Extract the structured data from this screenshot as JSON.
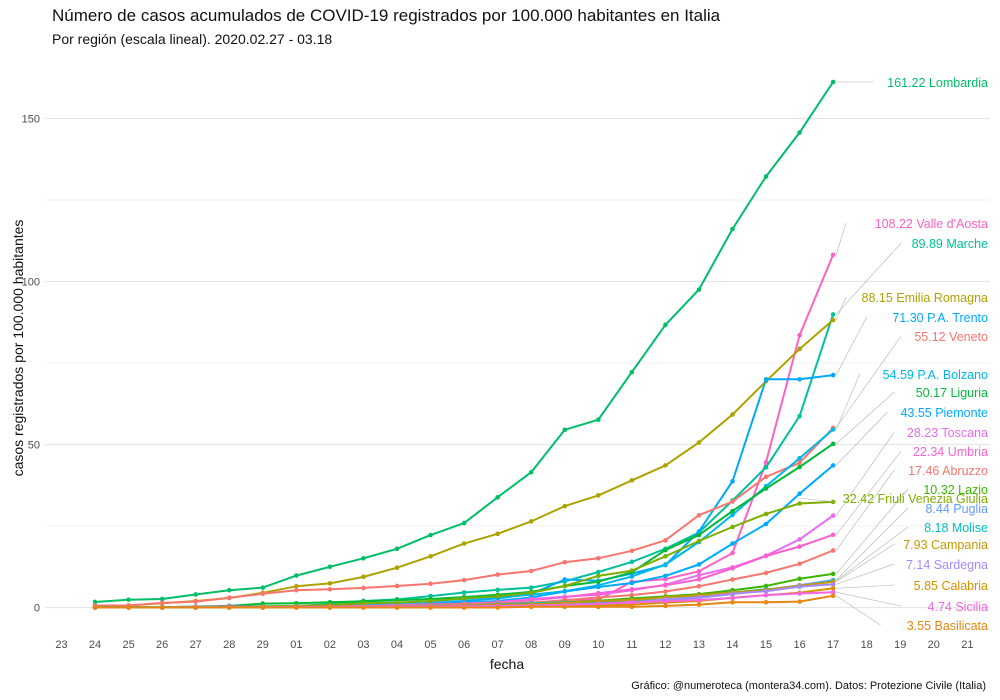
{
  "chart_data": {
    "type": "line",
    "title": "Número de casos acumulados de COVID-19 registrados por 100.000 habitantes en Italia",
    "subtitle": "Por región (escala lineal). 2020.02.27 - 03.18",
    "xlabel": "fecha",
    "ylabel": "casos registrados por 100.000 habitantes",
    "caption": "Gráfico: @numeroteca (montera34.com). Datos: Protezione Civile (Italia)",
    "x_ticks": [
      "23",
      "24",
      "25",
      "26",
      "27",
      "28",
      "29",
      "01",
      "02",
      "03",
      "04",
      "05",
      "06",
      "07",
      "08",
      "09",
      "10",
      "11",
      "12",
      "13",
      "14",
      "15",
      "16",
      "17",
      "18",
      "19",
      "20",
      "21"
    ],
    "y_ticks": [
      0,
      50,
      100,
      150
    ],
    "ylim": [
      -8,
      170
    ],
    "grid": true,
    "series": [
      {
        "name": "Lombardia",
        "color": "#00BE67",
        "label": "161.22 Lombardia",
        "values": [
          1.7,
          2.4,
          2.6,
          4.0,
          5.3,
          6.1,
          9.8,
          12.5,
          15.1,
          18.0,
          22.2,
          25.9,
          33.8,
          41.5,
          54.5,
          57.6,
          72.2,
          86.7,
          97.5,
          116.1,
          132.2,
          145.7,
          161.2
        ]
      },
      {
        "name": "Valle d'Aosta",
        "color": "#FF61C3",
        "label": "108.22 Valle d'Aosta",
        "values": [
          0,
          0,
          0,
          0,
          0,
          0,
          0,
          0,
          0,
          0,
          0,
          0,
          0.8,
          0.8,
          2.4,
          2.4,
          7.9,
          8.7,
          11.1,
          16.7,
          44.5,
          83.5,
          108.2
        ]
      },
      {
        "name": "Marche",
        "color": "#00C19A",
        "label": "89.89 Marche",
        "values": [
          0,
          0,
          0,
          0,
          0.1,
          0.2,
          0.5,
          1.0,
          2.0,
          2.5,
          3.5,
          4.6,
          5.4,
          6.1,
          8.0,
          10.9,
          14.0,
          18.0,
          23.0,
          32.8,
          43.0,
          58.7,
          89.9
        ]
      },
      {
        "name": "Emilia Romagna",
        "color": "#AEA200",
        "label": "88.15 Emilia Romagna",
        "values": [
          0.4,
          0.6,
          1.3,
          2.0,
          2.9,
          4.5,
          6.5,
          7.4,
          9.4,
          12.2,
          15.7,
          19.6,
          22.6,
          26.4,
          31.1,
          34.4,
          39.0,
          43.6,
          50.6,
          59.2,
          69.4,
          79.3,
          88.2
        ]
      },
      {
        "name": "P.A. Trento",
        "color": "#00A9FF",
        "label": "71.30 P.A. Trento",
        "values": [
          0,
          0,
          0,
          0,
          0,
          0,
          0.2,
          0.2,
          0.5,
          0.7,
          1.3,
          1.9,
          2.8,
          4.1,
          8.6,
          8.2,
          10.4,
          13.0,
          23.3,
          38.7,
          70.0,
          70.0,
          71.3
        ]
      },
      {
        "name": "Veneto",
        "color": "#F8766D",
        "label": "55.12 Veneto",
        "values": [
          0.6,
          0.6,
          1.4,
          1.8,
          3.0,
          4.2,
          5.3,
          5.6,
          6.0,
          6.6,
          7.3,
          8.4,
          10.1,
          11.2,
          13.9,
          15.1,
          17.4,
          20.6,
          28.3,
          32.5,
          40.1,
          44.4,
          55.1
        ]
      },
      {
        "name": "P.A. Bolzano",
        "color": "#00B8E7",
        "label": "54.59 P.A. Bolzano",
        "values": [
          0,
          0,
          0,
          0.2,
          0.4,
          0.4,
          0.4,
          0.9,
          1.1,
          1.3,
          1.9,
          2.6,
          3.2,
          3.9,
          5.0,
          6.8,
          9.5,
          13.2,
          20.1,
          28.4,
          37.2,
          45.8,
          54.6
        ]
      },
      {
        "name": "Liguria",
        "color": "#00BA38",
        "label": "50.17 Liguria",
        "values": [
          0,
          0,
          0.1,
          0.3,
          0.5,
          1.2,
          1.3,
          1.6,
          1.9,
          2.2,
          2.6,
          3.2,
          3.9,
          4.8,
          6.6,
          7.9,
          10.8,
          17.6,
          22.2,
          29.6,
          36.5,
          43.1,
          50.2
        ]
      },
      {
        "name": "Piemonte",
        "color": "#00ABFD",
        "label": "43.55 Piemonte",
        "values": [
          0,
          0,
          0,
          0,
          0.1,
          0.2,
          0.3,
          0.3,
          0.4,
          0.5,
          1.0,
          1.4,
          2.0,
          3.1,
          4.9,
          6.3,
          7.5,
          9.7,
          13.2,
          19.6,
          25.6,
          34.9,
          43.6
        ]
      },
      {
        "name": "Toscana",
        "color": "#E76BF3",
        "label": "28.23 Toscana",
        "values": [
          0,
          0.1,
          0.1,
          0.2,
          0.3,
          0.3,
          0.3,
          0.5,
          0.5,
          0.5,
          0.8,
          1.2,
          1.6,
          2.6,
          3.3,
          3.9,
          5.3,
          7.0,
          9.9,
          12.3,
          15.9,
          20.9,
          28.2
        ]
      },
      {
        "name": "Umbria",
        "color": "#FD61D1",
        "label": "22.34 Umbria",
        "values": [
          0,
          0,
          0,
          0,
          0,
          0,
          0.2,
          0.2,
          0.4,
          0.7,
          1.0,
          1.1,
          1.5,
          2.2,
          3.2,
          4.4,
          5.6,
          6.8,
          8.6,
          12.0,
          15.8,
          18.7,
          22.3
        ]
      },
      {
        "name": "Abruzzo",
        "color": "#F8766D",
        "label": "17.46 Abruzzo",
        "values": [
          0,
          0,
          0,
          0,
          0,
          0.1,
          0.1,
          0.4,
          0.4,
          0.5,
          0.7,
          1.0,
          1.3,
          1.5,
          2.2,
          3.1,
          3.8,
          4.9,
          6.5,
          8.6,
          10.6,
          13.4,
          17.5
        ]
      },
      {
        "name": "Lazio",
        "color": "#39B600",
        "label": "10.32 Lazio",
        "values": [
          0.05,
          0.05,
          0.05,
          0.05,
          0.1,
          0.1,
          0.1,
          0.1,
          0.2,
          0.3,
          0.4,
          0.5,
          0.7,
          1.1,
          1.6,
          2.1,
          2.8,
          3.4,
          4.1,
          5.3,
          6.6,
          8.8,
          10.3
        ]
      },
      {
        "name": "Friuli Venezia Giulia",
        "color": "#7CAE00",
        "label": "32.42 Friuli Venezia Giulia",
        "values": [
          0,
          0,
          0,
          0.1,
          0.1,
          0.3,
          0.5,
          0.8,
          1.3,
          1.5,
          2.0,
          2.8,
          3.4,
          4.5,
          6.6,
          9.7,
          11.3,
          15.7,
          20.4,
          24.7,
          28.7,
          31.9,
          32.4
        ]
      },
      {
        "name": "Puglia",
        "color": "#619CFF",
        "label": "8.44 Puglia",
        "values": [
          0,
          0,
          0,
          0,
          0,
          0,
          0.1,
          0.1,
          0.1,
          0.3,
          0.3,
          0.4,
          0.5,
          0.7,
          0.9,
          1.2,
          1.6,
          2.3,
          3.0,
          4.1,
          5.4,
          6.8,
          8.4
        ]
      },
      {
        "name": "Molise",
        "color": "#00BFC4",
        "label": "8.18 Molise",
        "values": [
          0,
          0,
          0,
          0,
          0,
          0,
          0,
          0,
          0.3,
          0.3,
          0.6,
          0.6,
          1.0,
          1.3,
          1.6,
          1.6,
          2.3,
          2.3,
          3.6,
          4.6,
          5.6,
          6.4,
          8.2
        ]
      },
      {
        "name": "Campania",
        "color": "#C49A00",
        "label": "7.93 Campania",
        "values": [
          0,
          0,
          0,
          0,
          0.1,
          0.1,
          0.2,
          0.3,
          0.3,
          0.3,
          0.5,
          0.6,
          0.8,
          1.0,
          1.4,
          2.0,
          2.3,
          3.1,
          3.8,
          4.6,
          5.4,
          6.7,
          7.9
        ]
      },
      {
        "name": "Sardegna",
        "color": "#A58AFF",
        "label": "7.14 Sardegna",
        "values": [
          0,
          0,
          0,
          0,
          0,
          0,
          0,
          0,
          0,
          0.1,
          0.2,
          0.2,
          0.3,
          0.5,
          0.8,
          1.2,
          1.5,
          2.5,
          3.1,
          4.2,
          5.0,
          6.4,
          7.1
        ]
      },
      {
        "name": "Calabria",
        "color": "#D89000",
        "label": "5.85 Calabria",
        "values": [
          0,
          0,
          0,
          0,
          0,
          0,
          0,
          0,
          0.1,
          0.1,
          0.1,
          0.2,
          0.3,
          0.3,
          0.5,
          0.6,
          0.9,
          1.5,
          2.0,
          3.0,
          3.8,
          4.5,
          5.9
        ]
      },
      {
        "name": "Sicilia",
        "color": "#F564E3",
        "label": "4.74 Sicilia",
        "values": [
          0,
          0,
          0,
          0.1,
          0.1,
          0.1,
          0.2,
          0.2,
          0.2,
          0.3,
          0.3,
          0.4,
          0.5,
          0.6,
          0.8,
          1.1,
          1.6,
          1.9,
          2.3,
          2.9,
          3.8,
          4.3,
          4.7
        ]
      },
      {
        "name": "Basilicata",
        "color": "#E68613",
        "label": "3.55 Basilicata",
        "values": [
          0,
          0,
          0,
          0,
          0,
          0,
          0,
          0,
          0,
          0,
          0,
          0,
          0,
          0.2,
          0.2,
          0.2,
          0.2,
          0.5,
          0.9,
          1.6,
          1.6,
          1.8,
          3.6
        ]
      }
    ],
    "label_positions": [
      82,
      223,
      243,
      297,
      317,
      336,
      374,
      392,
      412,
      432,
      451,
      470,
      489,
      498,
      508,
      527,
      544,
      564,
      585,
      606,
      625
    ]
  }
}
